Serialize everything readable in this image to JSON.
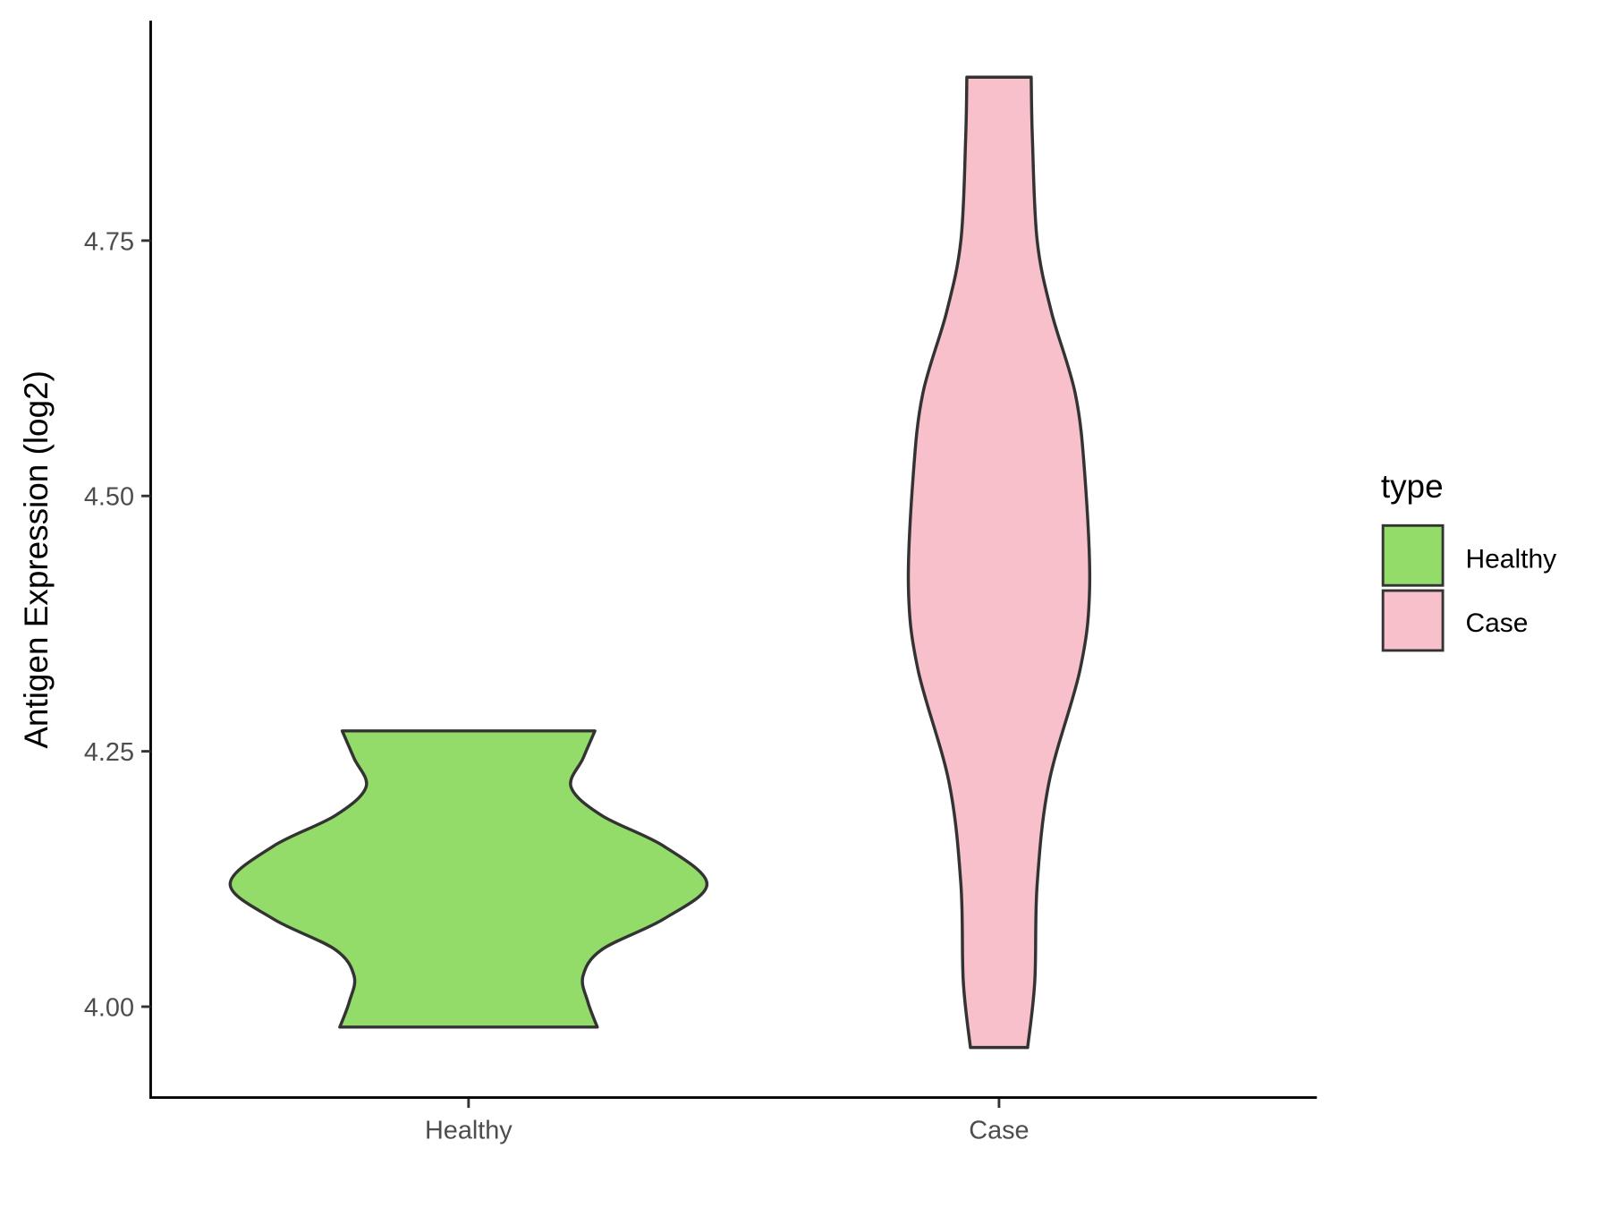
{
  "chart_data": {
    "type": "violin",
    "title": "",
    "xlabel": "",
    "ylabel": "Antigen Expression (log2)",
    "categories": [
      "Healthy",
      "Case"
    ],
    "yticks": [
      "4.00",
      "4.25",
      "4.50",
      "4.75"
    ],
    "ylim": [
      3.915,
      4.955
    ],
    "grid": false,
    "legend": {
      "title": "type",
      "placement": "right",
      "entries": [
        "Healthy",
        "Case"
      ]
    },
    "colors": {
      "Healthy": "#93dc6a",
      "Case": "#f8c0cb",
      "outline": "#333333"
    },
    "series": [
      {
        "name": "Healthy",
        "min": 3.98,
        "max": 4.27,
        "density_profile": [
          [
            3.98,
            0.54
          ],
          [
            4.005,
            0.5
          ],
          [
            4.03,
            0.48
          ],
          [
            4.056,
            0.56
          ],
          [
            4.086,
            0.82
          ],
          [
            4.12,
            1.0
          ],
          [
            4.157,
            0.82
          ],
          [
            4.187,
            0.56
          ],
          [
            4.215,
            0.43
          ],
          [
            4.243,
            0.48
          ],
          [
            4.27,
            0.53
          ]
        ]
      },
      {
        "name": "Case",
        "min": 3.96,
        "max": 4.91,
        "density_profile": [
          [
            3.96,
            0.12
          ],
          [
            4.025,
            0.15
          ],
          [
            4.12,
            0.16
          ],
          [
            4.22,
            0.21
          ],
          [
            4.33,
            0.34
          ],
          [
            4.41,
            0.38
          ],
          [
            4.52,
            0.36
          ],
          [
            4.6,
            0.32
          ],
          [
            4.68,
            0.22
          ],
          [
            4.75,
            0.16
          ],
          [
            4.85,
            0.14
          ],
          [
            4.91,
            0.135
          ]
        ]
      }
    ]
  }
}
